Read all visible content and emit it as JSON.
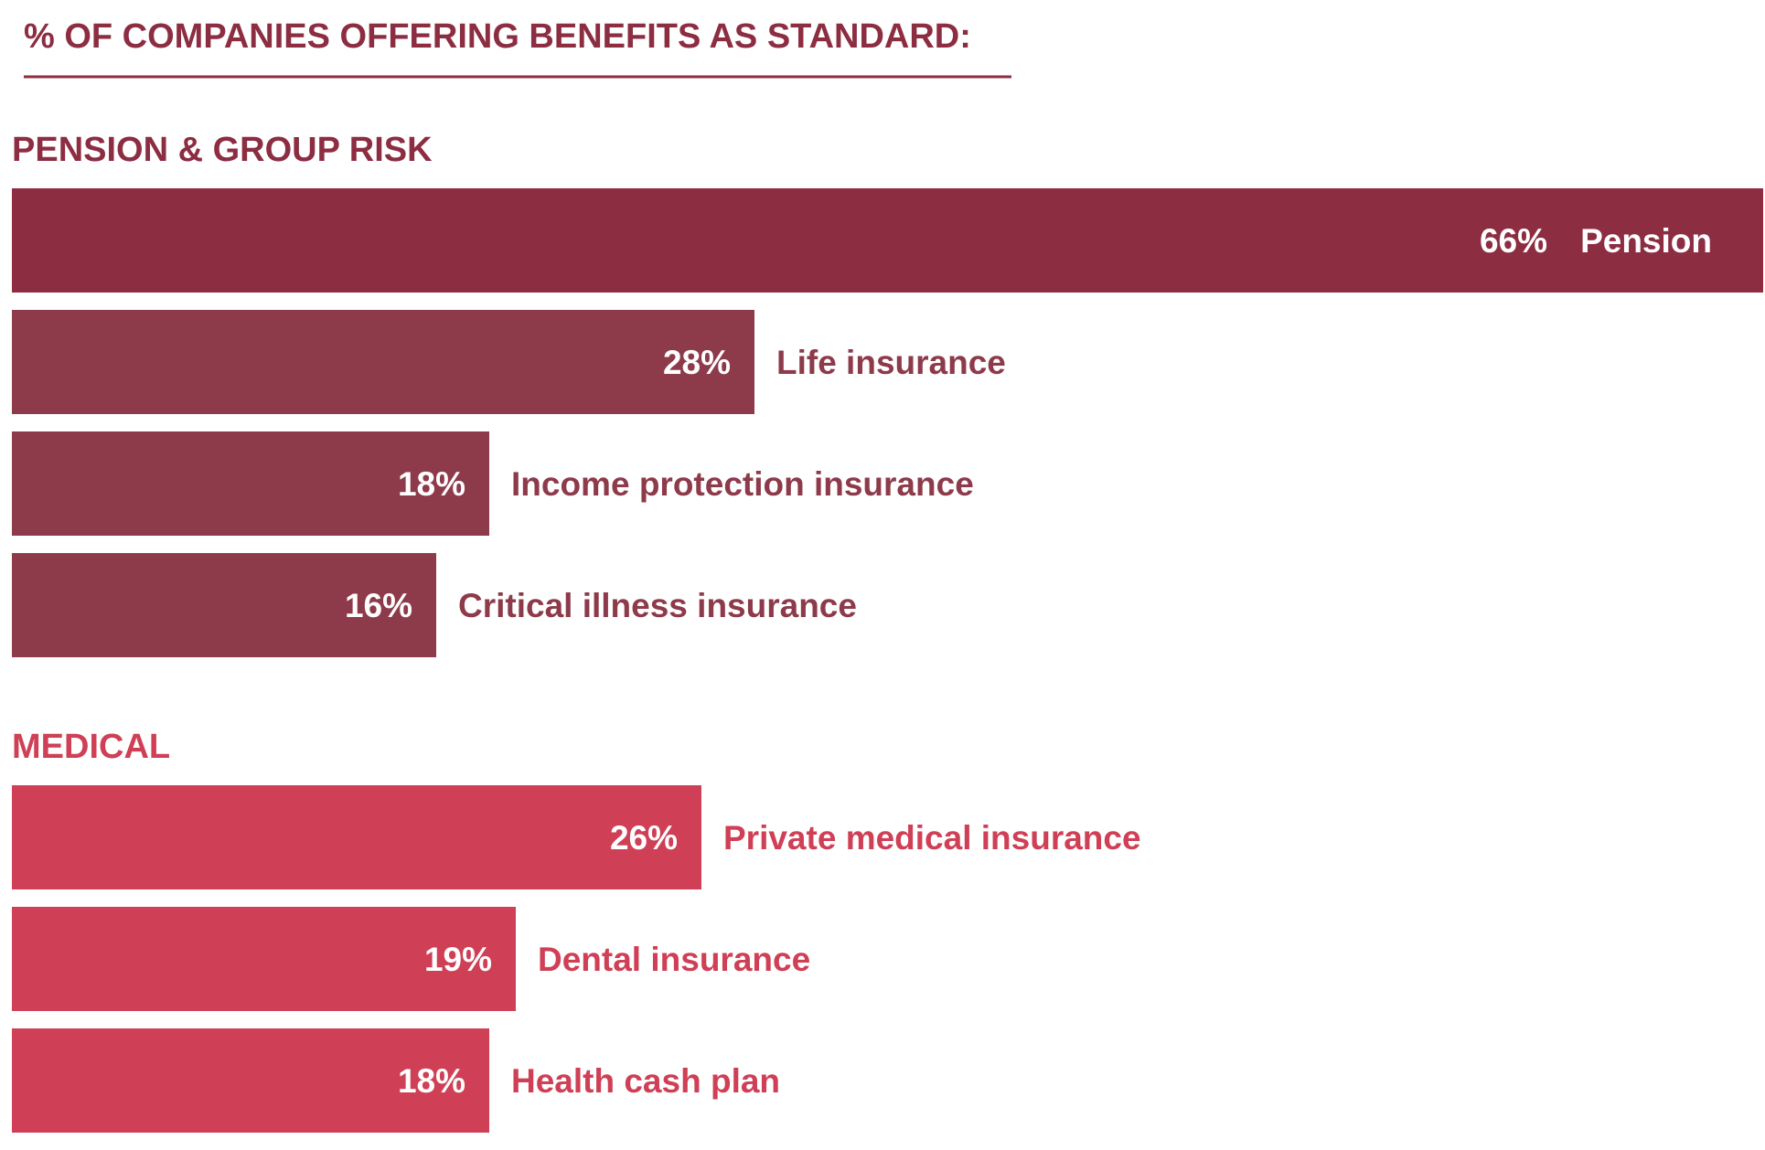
{
  "chart_data": {
    "type": "bar",
    "orientation": "horizontal",
    "title": "% OF COMPANIES OFFERING BENEFITS AS STANDARD:",
    "grid": false,
    "legend": "none",
    "xlim": [
      0,
      66
    ],
    "unit": "%",
    "groups": [
      {
        "name": "PENSION & GROUP RISK",
        "color": "#8c2d42",
        "items": [
          {
            "label": "Pension",
            "value": 66,
            "value_label": "66%"
          },
          {
            "label": "Life insurance",
            "value": 28,
            "value_label": "28%"
          },
          {
            "label": "Income protection insurance",
            "value": 18,
            "value_label": "18%"
          },
          {
            "label": "Critical illness insurance",
            "value": 16,
            "value_label": "16%"
          }
        ]
      },
      {
        "name": "MEDICAL",
        "color": "#cf3f55",
        "items": [
          {
            "label": "Private medical insurance",
            "value": 26,
            "value_label": "26%"
          },
          {
            "label": "Dental insurance",
            "value": 19,
            "value_label": "19%"
          },
          {
            "label": "Health cash plan",
            "value": 18,
            "value_label": "18%"
          }
        ]
      }
    ]
  }
}
